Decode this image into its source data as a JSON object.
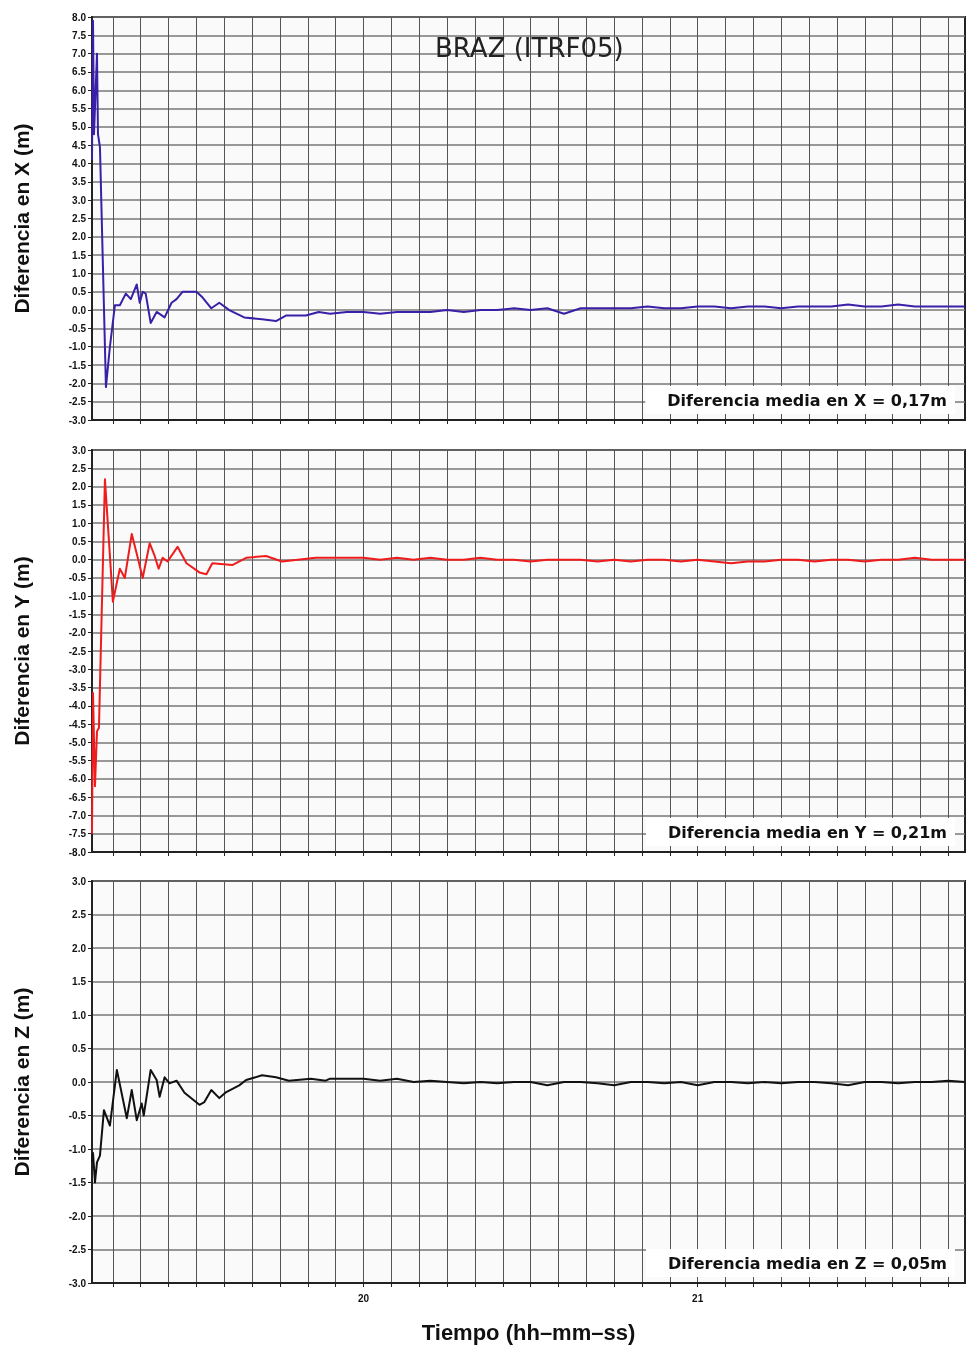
{
  "chart_data": [
    {
      "type": "line",
      "title": "BRAZ (ITRF05)",
      "ylabel": "Diferencia en X (m)",
      "annotations": [
        "Diferencia media en X = 0,17m"
      ],
      "grid": true,
      "tick_labels": "y",
      "xlim": [
        19.1875,
        21.8
      ],
      "xticks": [
        {
          "value": 19.25,
          "label": null
        },
        {
          "value": 19.3333,
          "label": null
        },
        {
          "value": 19.4167,
          "label": null
        },
        {
          "value": 19.5,
          "label": null
        },
        {
          "value": 19.5833,
          "label": null
        },
        {
          "value": 19.6667,
          "label": null
        },
        {
          "value": 19.75,
          "label": null
        },
        {
          "value": 19.8333,
          "label": null
        },
        {
          "value": 19.9167,
          "label": null
        },
        {
          "value": 20,
          "label": null
        },
        {
          "value": 20.0833,
          "label": null
        },
        {
          "value": 20.1667,
          "label": null
        },
        {
          "value": 20.25,
          "label": null
        },
        {
          "value": 20.3333,
          "label": null
        },
        {
          "value": 20.4167,
          "label": null
        },
        {
          "value": 20.5,
          "label": null
        },
        {
          "value": 20.5833,
          "label": null
        },
        {
          "value": 20.6667,
          "label": null
        },
        {
          "value": 20.75,
          "label": null
        },
        {
          "value": 20.8333,
          "label": null
        },
        {
          "value": 20.9167,
          "label": null
        },
        {
          "value": 21,
          "label": null
        },
        {
          "value": 21.0833,
          "label": null
        },
        {
          "value": 21.1667,
          "label": null
        },
        {
          "value": 21.25,
          "label": null
        },
        {
          "value": 21.3333,
          "label": null
        },
        {
          "value": 21.4167,
          "label": null
        },
        {
          "value": 21.5,
          "label": null
        },
        {
          "value": 21.5833,
          "label": null
        },
        {
          "value": 21.6667,
          "label": null
        },
        {
          "value": 21.75,
          "label": null
        }
      ],
      "ylim": [
        -3,
        8
      ],
      "yticks": [
        {
          "value": 8,
          "label": "8.0"
        },
        7.5,
        {
          "value": 7,
          "label": "7.0"
        },
        6.5,
        {
          "value": 6,
          "label": "6.0"
        },
        5.5,
        {
          "value": 5,
          "label": "5.0"
        },
        4.5,
        {
          "value": 4,
          "label": "4.0"
        },
        3.5,
        {
          "value": 3,
          "label": "3.0"
        },
        2.5,
        {
          "value": 2,
          "label": "2.0"
        },
        1.5,
        {
          "value": 1,
          "label": "1.0"
        },
        0.5,
        {
          "value": 0,
          "label": "0.0"
        },
        -0.5,
        {
          "value": -1,
          "label": "-1.0"
        },
        -1.5,
        {
          "value": -2,
          "label": "-2.0"
        },
        -2.5,
        {
          "value": -3,
          "label": "-3.0"
        }
      ],
      "series": [
        {
          "color": "#3a1fa8",
          "x": [
            19.1875,
            19.1905,
            19.1935,
            19.2024,
            19.2054,
            19.2113,
            19.2292,
            19.2411,
            19.256,
            19.2708,
            19.2887,
            19.3036,
            19.3214,
            19.3304,
            19.3393,
            19.3482,
            19.3631,
            19.381,
            19.4048,
            19.4256,
            19.4405,
            19.4583,
            19.5,
            19.5179,
            19.5446,
            19.5685,
            19.5982,
            19.6429,
            19.6964,
            19.7381,
            19.7679,
            19.8274,
            19.8661,
            19.9,
            19.95,
            20,
            20.05,
            20.1,
            20.15,
            20.2,
            20.25,
            20.3,
            20.35,
            20.4,
            20.45,
            20.5,
            20.55,
            20.6,
            20.65,
            20.7,
            20.75,
            20.8,
            20.85,
            20.9,
            20.95,
            21,
            21.05,
            21.1,
            21.15,
            21.2,
            21.25,
            21.3,
            21.35,
            21.4,
            21.45,
            21.5,
            21.55,
            21.6,
            21.65,
            21.7,
            21.75,
            21.8
          ],
          "values": [
            4.1,
            7.9,
            4.8,
            7.0,
            4.8,
            4.45,
            -2.1,
            -1.0,
            0.13,
            0.13,
            0.45,
            0.3,
            0.7,
            0.2,
            0.5,
            0.45,
            -0.35,
            -0.05,
            -0.2,
            0.2,
            0.3,
            0.5,
            0.5,
            0.35,
            0.05,
            0.2,
            0,
            -0.2,
            -0.25,
            -0.3,
            -0.15,
            -0.15,
            -0.05,
            -0.1,
            -0.05,
            -0.05,
            -0.1,
            -0.05,
            -0.05,
            -0.05,
            0,
            -0.05,
            0,
            0,
            0.05,
            0,
            0.05,
            -0.1,
            0.05,
            0.05,
            0.05,
            0.05,
            0.1,
            0.05,
            0.05,
            0.1,
            0.1,
            0.05,
            0.1,
            0.1,
            0.05,
            0.1,
            0.1,
            0.1,
            0.15,
            0.1,
            0.1,
            0.15,
            0.1,
            0.1,
            0.1,
            0.1
          ]
        }
      ]
    },
    {
      "type": "line",
      "ylabel": "Diferencia en Y (m)",
      "annotations": [
        "Diferencia media en Y = 0,21m"
      ],
      "grid": true,
      "tick_labels": "y",
      "xlim": [
        19.1875,
        21.8
      ],
      "xticks": [
        {
          "value": 19.25,
          "label": null
        },
        {
          "value": 19.3333,
          "label": null
        },
        {
          "value": 19.4167,
          "label": null
        },
        {
          "value": 19.5,
          "label": null
        },
        {
          "value": 19.5833,
          "label": null
        },
        {
          "value": 19.6667,
          "label": null
        },
        {
          "value": 19.75,
          "label": null
        },
        {
          "value": 19.8333,
          "label": null
        },
        {
          "value": 19.9167,
          "label": null
        },
        {
          "value": 20,
          "label": null
        },
        {
          "value": 20.0833,
          "label": null
        },
        {
          "value": 20.1667,
          "label": null
        },
        {
          "value": 20.25,
          "label": null
        },
        {
          "value": 20.3333,
          "label": null
        },
        {
          "value": 20.4167,
          "label": null
        },
        {
          "value": 20.5,
          "label": null
        },
        {
          "value": 20.5833,
          "label": null
        },
        {
          "value": 20.6667,
          "label": null
        },
        {
          "value": 20.75,
          "label": null
        },
        {
          "value": 20.8333,
          "label": null
        },
        {
          "value": 20.9167,
          "label": null
        },
        {
          "value": 21,
          "label": null
        },
        {
          "value": 21.0833,
          "label": null
        },
        {
          "value": 21.1667,
          "label": null
        },
        {
          "value": 21.25,
          "label": null
        },
        {
          "value": 21.3333,
          "label": null
        },
        {
          "value": 21.4167,
          "label": null
        },
        {
          "value": 21.5,
          "label": null
        },
        {
          "value": 21.5833,
          "label": null
        },
        {
          "value": 21.6667,
          "label": null
        },
        {
          "value": 21.75,
          "label": null
        }
      ],
      "ylim": [
        -8,
        3
      ],
      "yticks": [
        {
          "value": 3,
          "label": "3.0"
        },
        2.5,
        {
          "value": 2,
          "label": "2.0"
        },
        1.5,
        {
          "value": 1,
          "label": "1.0"
        },
        0.5,
        {
          "value": 0,
          "label": "0.0"
        },
        -0.5,
        {
          "value": -1,
          "label": "-1.0"
        },
        -1.5,
        {
          "value": -2,
          "label": "-2.0"
        },
        -2.5,
        {
          "value": -3,
          "label": "-3.0"
        },
        -3.5,
        {
          "value": -4,
          "label": "-4.0"
        },
        -4.5,
        {
          "value": -5,
          "label": "-5.0"
        },
        -5.5,
        {
          "value": -6,
          "label": "-6.0"
        },
        -6.5,
        {
          "value": -7,
          "label": "-7.0"
        },
        -7.5,
        {
          "value": -8,
          "label": "-8.0"
        }
      ],
      "series": [
        {
          "color": "#ee1c1c",
          "x": [
            19.1875,
            19.1905,
            19.1964,
            19.2024,
            19.2083,
            19.2262,
            19.25,
            19.2708,
            19.2857,
            19.3065,
            19.3244,
            19.3393,
            19.3601,
            19.375,
            19.3869,
            19.3988,
            19.4137,
            19.4435,
            19.4702,
            19.5089,
            19.5298,
            19.5476,
            19.6071,
            19.6488,
            19.7083,
            19.756,
            19.8571,
            19.9,
            19.95,
            20,
            20.05,
            20.1,
            20.15,
            20.2,
            20.25,
            20.3,
            20.35,
            20.4,
            20.45,
            20.5,
            20.55,
            20.6,
            20.65,
            20.7,
            20.75,
            20.8,
            20.85,
            20.9,
            20.95,
            21,
            21.05,
            21.1,
            21.15,
            21.2,
            21.25,
            21.3,
            21.35,
            21.4,
            21.45,
            21.5,
            21.55,
            21.6,
            21.65,
            21.7,
            21.75,
            21.8
          ],
          "values": [
            -7.5,
            -3.65,
            -6.2,
            -4.7,
            -4.6,
            2.2,
            -1.15,
            -0.25,
            -0.5,
            0.7,
            0.05,
            -0.5,
            0.45,
            0.1,
            -0.25,
            0.05,
            -0.05,
            0.35,
            -0.1,
            -0.35,
            -0.4,
            -0.1,
            -0.15,
            0.05,
            0.1,
            -0.05,
            0.05,
            0.05,
            0.05,
            0.05,
            0,
            0.05,
            0,
            0.05,
            0,
            0,
            0.05,
            0,
            0,
            -0.05,
            0,
            0,
            0,
            -0.05,
            0,
            -0.05,
            0,
            0,
            -0.05,
            0,
            -0.05,
            -0.1,
            -0.05,
            -0.05,
            0,
            0,
            -0.05,
            0,
            0,
            -0.05,
            0,
            0,
            0.05,
            0,
            0,
            0
          ]
        }
      ]
    },
    {
      "type": "line",
      "ylabel": "Diferencia en Z (m)",
      "xlabel": "Tiempo (hh–mm–ss)",
      "annotations": [
        "Diferencia media en Z = 0,05m"
      ],
      "grid": true,
      "xlim": [
        19.1875,
        21.8
      ],
      "xticks": [
        {
          "value": 19.25,
          "label": null
        },
        {
          "value": 19.3333,
          "label": null
        },
        {
          "value": 19.4167,
          "label": null
        },
        {
          "value": 19.5,
          "label": null
        },
        {
          "value": 19.5833,
          "label": null
        },
        {
          "value": 19.6667,
          "label": null
        },
        {
          "value": 19.75,
          "label": null
        },
        {
          "value": 19.8333,
          "label": null
        },
        {
          "value": 19.9167,
          "label": null
        },
        20,
        {
          "value": 20.0833,
          "label": null
        },
        {
          "value": 20.1667,
          "label": null
        },
        {
          "value": 20.25,
          "label": null
        },
        {
          "value": 20.3333,
          "label": null
        },
        {
          "value": 20.4167,
          "label": null
        },
        {
          "value": 20.5,
          "label": null
        },
        {
          "value": 20.5833,
          "label": null
        },
        {
          "value": 20.6667,
          "label": null
        },
        {
          "value": 20.75,
          "label": null
        },
        {
          "value": 20.8333,
          "label": null
        },
        {
          "value": 20.9167,
          "label": null
        },
        21,
        {
          "value": 21.0833,
          "label": null
        },
        {
          "value": 21.1667,
          "label": null
        },
        {
          "value": 21.25,
          "label": null
        },
        {
          "value": 21.3333,
          "label": null
        },
        {
          "value": 21.4167,
          "label": null
        },
        {
          "value": 21.5,
          "label": null
        },
        {
          "value": 21.5833,
          "label": null
        },
        {
          "value": 21.6667,
          "label": null
        },
        {
          "value": 21.75,
          "label": null
        }
      ],
      "ylim": [
        -3,
        3
      ],
      "yticks": [
        {
          "value": 3,
          "label": "3.0"
        },
        2.5,
        {
          "value": 2,
          "label": "2.0"
        },
        1.5,
        {
          "value": 1,
          "label": "1.0"
        },
        0.5,
        {
          "value": 0,
          "label": "0.0"
        },
        -0.5,
        {
          "value": -1,
          "label": "-1.0"
        },
        -1.5,
        {
          "value": -2,
          "label": "-2.0"
        },
        -2.5,
        {
          "value": -3,
          "label": "-3.0"
        }
      ],
      "series": [
        {
          "color": "#111111",
          "x": [
            19.1875,
            19.1905,
            19.1964,
            19.2024,
            19.2113,
            19.2232,
            19.2411,
            19.2619,
            19.2917,
            19.3065,
            19.3214,
            19.3363,
            19.3423,
            19.3631,
            19.381,
            19.3899,
            19.4048,
            19.4196,
            19.4405,
            19.4643,
            19.5089,
            19.5238,
            19.5446,
            19.5685,
            19.5893,
            19.628,
            19.6488,
            19.6964,
            19.7381,
            19.7768,
            19.8423,
            19.8869,
            19.9,
            19.95,
            20,
            20.05,
            20.1,
            20.15,
            20.2,
            20.25,
            20.3,
            20.35,
            20.4,
            20.45,
            20.5,
            20.55,
            20.6,
            20.65,
            20.7,
            20.75,
            20.8,
            20.85,
            20.9,
            20.95,
            21,
            21.05,
            21.1,
            21.15,
            21.2,
            21.25,
            21.3,
            21.35,
            21.4,
            21.45,
            21.5,
            21.55,
            21.6,
            21.65,
            21.7,
            21.75,
            21.8
          ],
          "values": [
            -1.2,
            -1.06,
            -1.5,
            -1.2,
            -1.1,
            -0.42,
            -0.65,
            0.18,
            -0.54,
            -0.12,
            -0.57,
            -0.32,
            -0.5,
            0.18,
            0.03,
            -0.22,
            0.07,
            -0.02,
            0.02,
            -0.16,
            -0.34,
            -0.3,
            -0.12,
            -0.24,
            -0.15,
            -0.05,
            0.03,
            0.1,
            0.07,
            0.02,
            0.05,
            0.02,
            0.05,
            0.05,
            0.05,
            0.02,
            0.05,
            0,
            0.02,
            0,
            -0.02,
            0,
            -0.02,
            0,
            0,
            -0.05,
            0,
            0,
            -0.02,
            -0.05,
            0,
            0,
            -0.02,
            0,
            -0.05,
            0,
            0,
            -0.02,
            0,
            -0.02,
            0,
            0,
            -0.02,
            -0.05,
            0,
            0,
            -0.02,
            0,
            0,
            0.02,
            0
          ]
        }
      ]
    }
  ]
}
